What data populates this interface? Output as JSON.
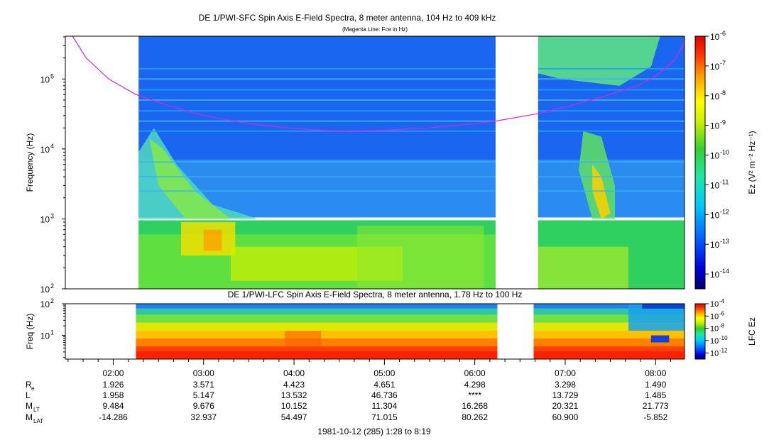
{
  "chart_data": [
    {
      "type": "heatmap",
      "title": "DE 1/PWI-SFC  Spin Axis E-Field Spectra, 8 meter antenna, 104 Hz to 409 kHz",
      "subtitle": "(Magenta Line: Fce in Hz)",
      "ylabel": "Frequency (Hz)",
      "yscale": "log",
      "ylim": [
        100,
        409000
      ],
      "yticks": [
        {
          "base": "10",
          "exp": "2"
        },
        {
          "base": "10",
          "exp": "3"
        },
        {
          "base": "10",
          "exp": "4"
        },
        {
          "base": "10",
          "exp": "5"
        }
      ],
      "colorbar_label": "Ez (V² m⁻² Hz⁻¹)",
      "colorbar_ticks": [
        {
          "base": "10",
          "exp": "-6"
        },
        {
          "base": "10",
          "exp": "-7"
        },
        {
          "base": "10",
          "exp": "-8"
        },
        {
          "base": "10",
          "exp": "-9"
        },
        {
          "base": "10",
          "exp": "-10"
        },
        {
          "base": "10",
          "exp": "-11"
        },
        {
          "base": "10",
          "exp": "-12"
        },
        {
          "base": "10",
          "exp": "-13"
        },
        {
          "base": "10",
          "exp": "-14"
        }
      ],
      "colorbar_range_exp": [
        -14.5,
        -6
      ],
      "data_start_hour": 2.28,
      "data_gap_hours": [
        6.23,
        6.7
      ],
      "fce_line_color": "#e020e0",
      "fce_curve": [
        [
          1.55,
          409000
        ],
        [
          1.7,
          200000
        ],
        [
          1.95,
          100000
        ],
        [
          2.25,
          60000
        ],
        [
          2.6,
          42000
        ],
        [
          3.0,
          30000
        ],
        [
          3.5,
          23000
        ],
        [
          4.0,
          19500
        ],
        [
          4.5,
          18000
        ],
        [
          5.0,
          18500
        ],
        [
          5.5,
          20000
        ],
        [
          6.0,
          23000
        ],
        [
          6.23,
          25000
        ],
        [
          6.7,
          32000
        ],
        [
          7.0,
          40000
        ],
        [
          7.4,
          55000
        ],
        [
          7.8,
          80000
        ],
        [
          8.0,
          110000
        ],
        [
          8.2,
          180000
        ],
        [
          8.3,
          300000
        ],
        [
          8.35,
          409000
        ]
      ]
    },
    {
      "type": "heatmap",
      "title": "DE 1/PWI-LFC  Spin Axis E-Field Spectra, 8 meter antenna, 1.78 Hz to 100 Hz",
      "ylabel": "Freq (Hz)",
      "yscale": "log",
      "ylim": [
        1.78,
        100
      ],
      "yticks": [
        {
          "base": "10",
          "exp": "1"
        },
        {
          "base": "10",
          "exp": "2"
        }
      ],
      "colorbar_label": "LFC Ez",
      "colorbar_ticks": [
        {
          "base": "10",
          "exp": "-4"
        },
        {
          "base": "10",
          "exp": "-6"
        },
        {
          "base": "10",
          "exp": "-8"
        },
        {
          "base": "10",
          "exp": "-10"
        },
        {
          "base": "10",
          "exp": "-12"
        }
      ],
      "colorbar_range_exp": [
        -13,
        -4
      ],
      "data_start_hour": 2.25,
      "data_gap_hours": [
        6.25,
        6.65
      ]
    }
  ],
  "time_axis": {
    "xlim_hours": [
      1.47,
      8.32
    ],
    "ticks": [
      {
        "label": "02:00",
        "hour": 2
      },
      {
        "label": "03:00",
        "hour": 3
      },
      {
        "label": "04:00",
        "hour": 4
      },
      {
        "label": "05:00",
        "hour": 5
      },
      {
        "label": "06:00",
        "hour": 6
      },
      {
        "label": "07:00",
        "hour": 7
      },
      {
        "label": "08:00",
        "hour": 8
      }
    ],
    "footer": "1981-10-12 (285) 1:28 to 8:19"
  },
  "ephemeris": [
    {
      "label": "R",
      "sub": "e",
      "values": [
        "1.926",
        "3.571",
        "4.423",
        "4.651",
        "4.298",
        "3.298",
        "1.490"
      ]
    },
    {
      "label": "L",
      "sub": "",
      "values": [
        "1.958",
        "5.147",
        "13.532",
        "46.736",
        "****",
        "13.729",
        "1.485"
      ]
    },
    {
      "label": "M",
      "sub": "LT",
      "values": [
        "9.484",
        "9.676",
        "10.152",
        "11.304",
        "16.268",
        "20.321",
        "21.773"
      ]
    },
    {
      "label": "M",
      "sub": "LAT",
      "values": [
        "-14.286",
        "32.937",
        "54.497",
        "71.015",
        "80.262",
        "60.900",
        "-5.852"
      ]
    }
  ]
}
